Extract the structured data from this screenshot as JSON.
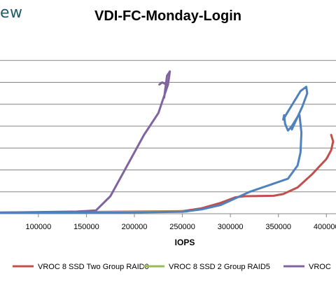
{
  "brand": {
    "fragment": "ew"
  },
  "chart_data": {
    "type": "line",
    "title": "VDI-FC-Monday-Login",
    "xlabel": "IOPS",
    "ylabel": "",
    "x_ticks": [
      100000,
      150000,
      200000,
      250000,
      300000,
      350000,
      400000
    ],
    "x_tick_labels": [
      "100000",
      "150000",
      "200000",
      "250000",
      "300000",
      "350000",
      "400000"
    ],
    "xlim": [
      60000,
      410000
    ],
    "ylim": [
      0,
      8
    ],
    "grid": true,
    "legend_position": "bottom",
    "series": [
      {
        "name": "VROC 8 SSD Two Group RAID0",
        "color": "#c0504d",
        "points": [
          [
            60000,
            0.05
          ],
          [
            150000,
            0.08
          ],
          [
            200000,
            0.1
          ],
          [
            250000,
            0.12
          ],
          [
            270000,
            0.25
          ],
          [
            290000,
            0.5
          ],
          [
            305000,
            0.75
          ],
          [
            315000,
            0.8
          ],
          [
            345000,
            0.82
          ],
          [
            355000,
            0.9
          ],
          [
            370000,
            1.2
          ],
          [
            385000,
            1.8
          ],
          [
            400000,
            2.5
          ],
          [
            405000,
            2.9
          ],
          [
            407000,
            3.3
          ],
          [
            405000,
            3.6
          ]
        ]
      },
      {
        "name": "VROC 8 SSD 2 Group RAID5",
        "color": "#9bbb59",
        "points": [
          [
            60000,
            0.05
          ],
          [
            150000,
            0.07
          ],
          [
            240000,
            0.1
          ],
          [
            255000,
            0.1
          ]
        ]
      },
      {
        "name": "VROC",
        "color": "#8064a2",
        "points": [
          [
            60000,
            0.05
          ],
          [
            140000,
            0.1
          ],
          [
            160000,
            0.15
          ],
          [
            175000,
            0.8
          ],
          [
            190000,
            2.0
          ],
          [
            210000,
            3.6
          ],
          [
            225000,
            4.6
          ],
          [
            235000,
            5.9
          ],
          [
            237000,
            6.5
          ],
          [
            234000,
            6.3
          ],
          [
            231000,
            5.3
          ],
          [
            233000,
            5.9
          ],
          [
            229000,
            6.0
          ],
          [
            226000,
            5.9
          ]
        ]
      },
      {
        "name": "",
        "color": "#4f81bd",
        "points": [
          [
            60000,
            0.04
          ],
          [
            200000,
            0.06
          ],
          [
            250000,
            0.09
          ],
          [
            270000,
            0.2
          ],
          [
            290000,
            0.4
          ],
          [
            305000,
            0.7
          ],
          [
            320000,
            1.0
          ],
          [
            340000,
            1.3
          ],
          [
            360000,
            1.6
          ],
          [
            370000,
            2.2
          ],
          [
            373000,
            2.8
          ],
          [
            374000,
            3.7
          ],
          [
            372000,
            4.5
          ],
          [
            371000,
            4.5
          ],
          [
            364000,
            4.0
          ],
          [
            360000,
            3.8
          ],
          [
            357000,
            4.1
          ],
          [
            356000,
            4.5
          ],
          [
            355000,
            4.3
          ],
          [
            359000,
            4.6
          ],
          [
            366000,
            5.1
          ],
          [
            373000,
            5.6
          ],
          [
            379000,
            5.8
          ],
          [
            380000,
            5.5
          ],
          [
            375000,
            4.9
          ],
          [
            364000,
            3.85
          ]
        ]
      }
    ]
  }
}
